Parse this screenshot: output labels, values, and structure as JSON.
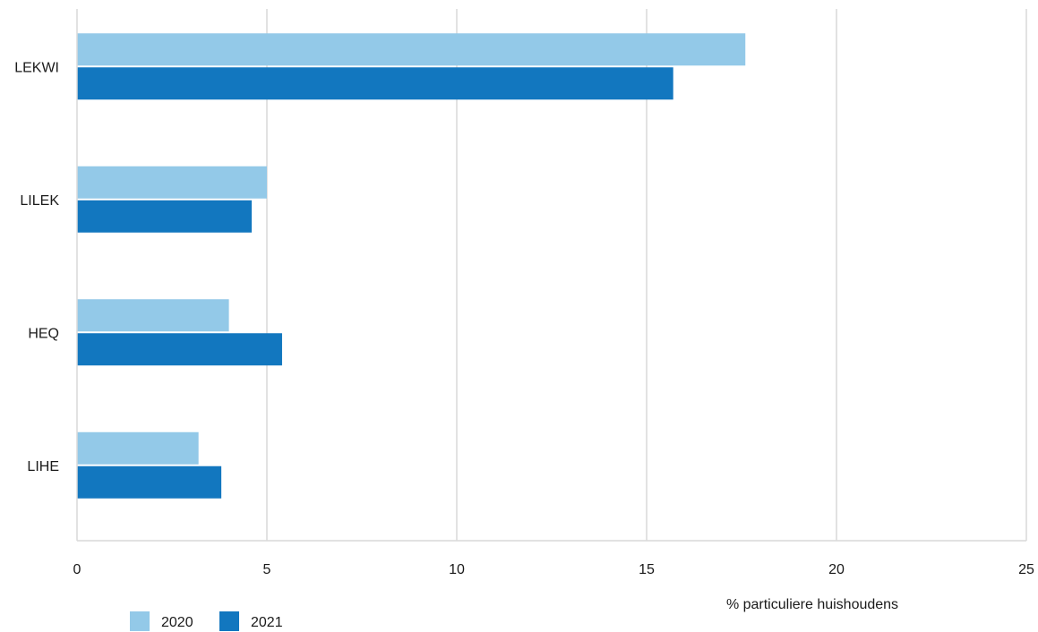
{
  "chart_data": {
    "type": "bar",
    "orientation": "horizontal",
    "categories": [
      "LEKWI",
      "LILEK",
      "HEQ",
      "LIHE"
    ],
    "series": [
      {
        "name": "2020",
        "color": "#93c9e8",
        "values": [
          17.6,
          5.0,
          4.0,
          3.2
        ]
      },
      {
        "name": "2021",
        "color": "#1277bf",
        "values": [
          15.7,
          4.6,
          5.4,
          3.8
        ]
      }
    ],
    "xlabel": "% particuliere huishoudens",
    "xlim": [
      0,
      25
    ],
    "xticks": [
      0,
      5,
      10,
      15,
      20,
      25
    ],
    "grid": true,
    "legend": {
      "placement": "bottom-left"
    }
  }
}
